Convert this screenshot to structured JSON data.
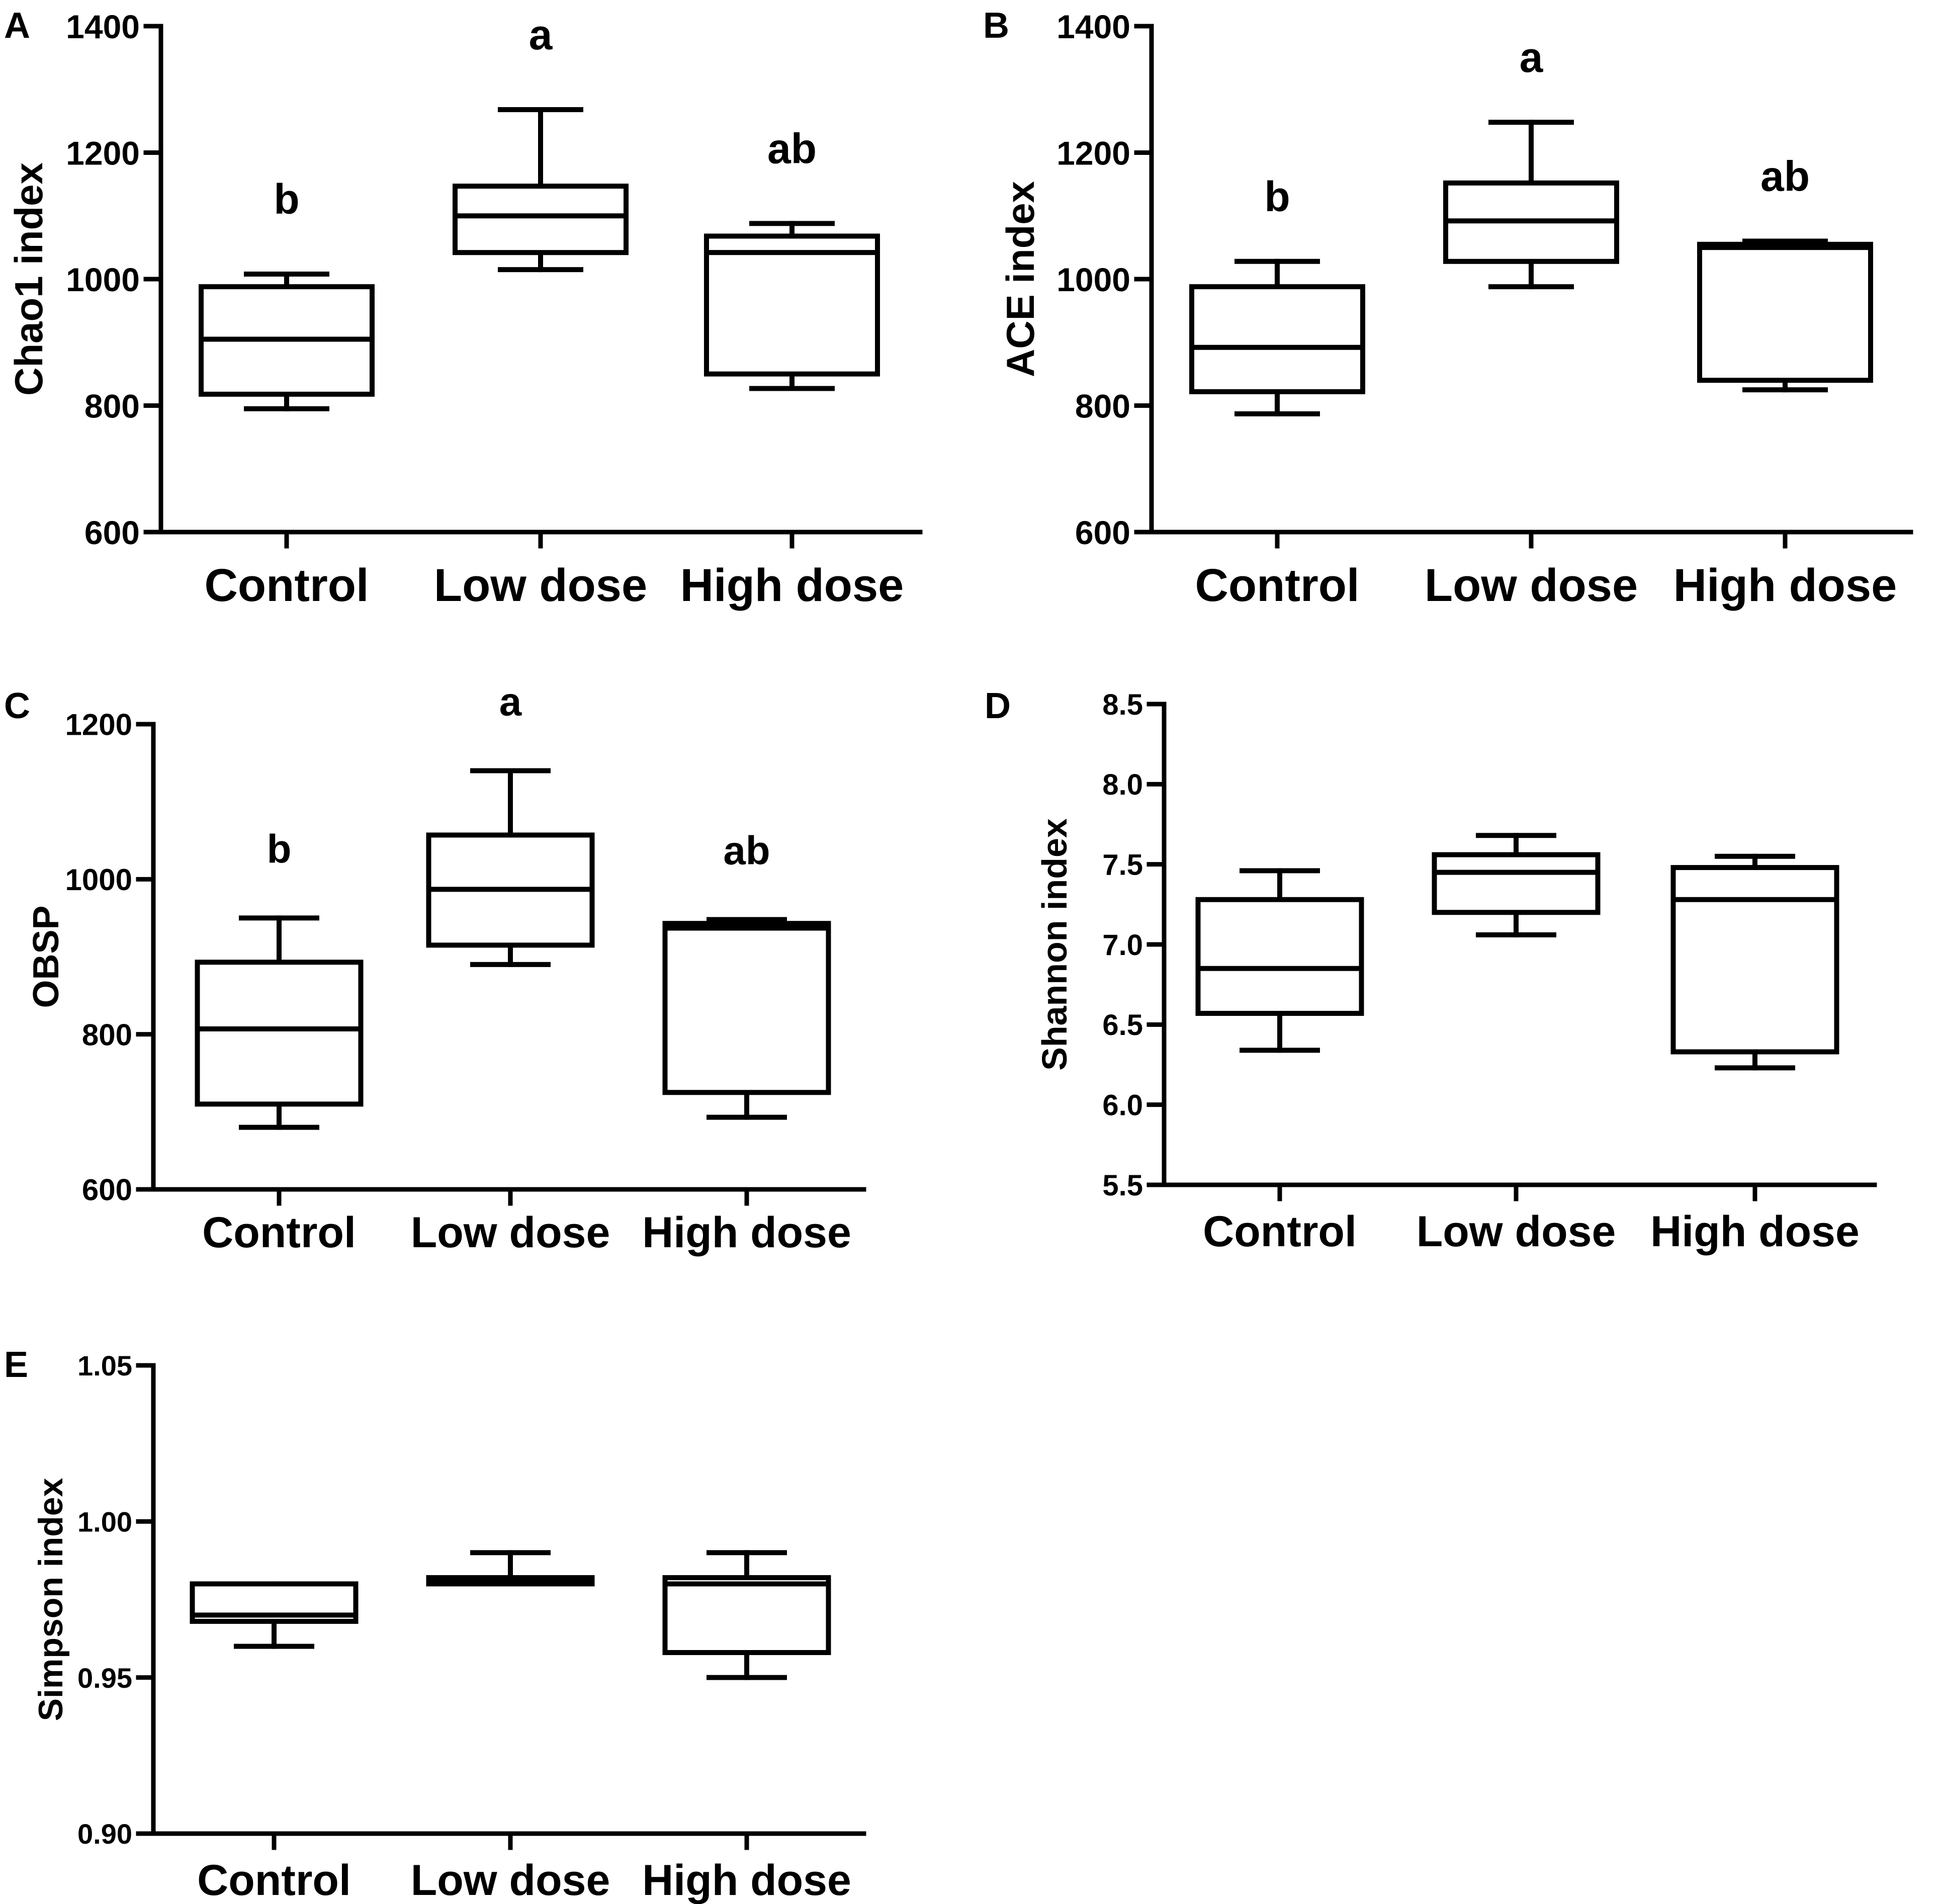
{
  "figure": {
    "colors": {
      "ink": "#000000",
      "background": "#ffffff"
    }
  },
  "chart_data": [
    {
      "panel": "A",
      "type": "box",
      "title": "",
      "xlabel": "",
      "ylabel": "Chao1 index",
      "categories": [
        "Control",
        "Low dose",
        "High dose"
      ],
      "ylim": [
        600,
        1400
      ],
      "yticks": [
        600,
        800,
        1000,
        1200,
        1400
      ],
      "tick_labels": [
        "600",
        "800",
        "1000",
        "1200",
        "1400"
      ],
      "boxes": [
        {
          "min": 795,
          "q1": 818,
          "median": 905,
          "q3": 988,
          "max": 1008
        },
        {
          "min": 1015,
          "q1": 1042,
          "median": 1100,
          "q3": 1147,
          "max": 1268
        },
        {
          "min": 827,
          "q1": 850,
          "median": 1042,
          "q3": 1068,
          "max": 1088
        }
      ],
      "annotations": [
        "b",
        "a",
        "ab"
      ]
    },
    {
      "panel": "B",
      "type": "box",
      "title": "",
      "xlabel": "",
      "ylabel": "ACE index",
      "categories": [
        "Control",
        "Low dose",
        "High dose"
      ],
      "ylim": [
        600,
        1400
      ],
      "yticks": [
        600,
        800,
        1000,
        1200,
        1400
      ],
      "tick_labels": [
        "600",
        "800",
        "1000",
        "1200",
        "1400"
      ],
      "boxes": [
        {
          "min": 787,
          "q1": 822,
          "median": 892,
          "q3": 988,
          "max": 1028
        },
        {
          "min": 988,
          "q1": 1028,
          "median": 1092,
          "q3": 1152,
          "max": 1248
        },
        {
          "min": 825,
          "q1": 840,
          "median": 1050,
          "q3": 1055,
          "max": 1060
        }
      ],
      "annotations": [
        "b",
        "a",
        "ab"
      ]
    },
    {
      "panel": "C",
      "type": "box",
      "title": "",
      "xlabel": "",
      "ylabel": "OBSP",
      "categories": [
        "Control",
        "Low dose",
        "High dose"
      ],
      "ylim": [
        600,
        1200
      ],
      "yticks": [
        600,
        800,
        1000,
        1200
      ],
      "tick_labels": [
        "600",
        "800",
        "1000",
        "1200"
      ],
      "boxes": [
        {
          "min": 680,
          "q1": 710,
          "median": 807,
          "q3": 893,
          "max": 950
        },
        {
          "min": 890,
          "q1": 915,
          "median": 987,
          "q3": 1057,
          "max": 1140
        },
        {
          "min": 693,
          "q1": 725,
          "median": 937,
          "q3": 943,
          "max": 948
        }
      ],
      "annotations": [
        "b",
        "a",
        "ab"
      ]
    },
    {
      "panel": "D",
      "type": "box",
      "title": "",
      "xlabel": "",
      "ylabel": "Shannon index",
      "categories": [
        "Control",
        "Low dose",
        "High dose"
      ],
      "ylim": [
        5.5,
        8.5
      ],
      "yticks": [
        5.5,
        6.0,
        6.5,
        7.0,
        7.5,
        8.0,
        8.5
      ],
      "tick_labels": [
        "5.5",
        "6.0",
        "6.5",
        "7.0",
        "7.5",
        "8.0",
        "8.5"
      ],
      "boxes": [
        {
          "min": 6.34,
          "q1": 6.57,
          "median": 6.85,
          "q3": 7.28,
          "max": 7.46
        },
        {
          "min": 7.06,
          "q1": 7.2,
          "median": 7.45,
          "q3": 7.56,
          "max": 7.68
        },
        {
          "min": 6.23,
          "q1": 6.33,
          "median": 7.28,
          "q3": 7.48,
          "max": 7.55
        }
      ],
      "annotations": []
    },
    {
      "panel": "E",
      "type": "box",
      "title": "",
      "xlabel": "",
      "ylabel": "Simpson index",
      "categories": [
        "Control",
        "Low dose",
        "High dose"
      ],
      "ylim": [
        0.9,
        1.05
      ],
      "yticks": [
        0.9,
        0.95,
        1.0,
        1.05
      ],
      "tick_labels": [
        "0.90",
        "0.95",
        "1.00",
        "1.05"
      ],
      "boxes": [
        {
          "min": 0.96,
          "q1": 0.968,
          "median": 0.97,
          "q3": 0.98,
          "max": 0.98
        },
        {
          "min": 0.98,
          "q1": 0.98,
          "median": 0.981,
          "q3": 0.982,
          "max": 0.99
        },
        {
          "min": 0.95,
          "q1": 0.958,
          "median": 0.98,
          "q3": 0.982,
          "max": 0.99
        }
      ],
      "annotations": []
    }
  ]
}
